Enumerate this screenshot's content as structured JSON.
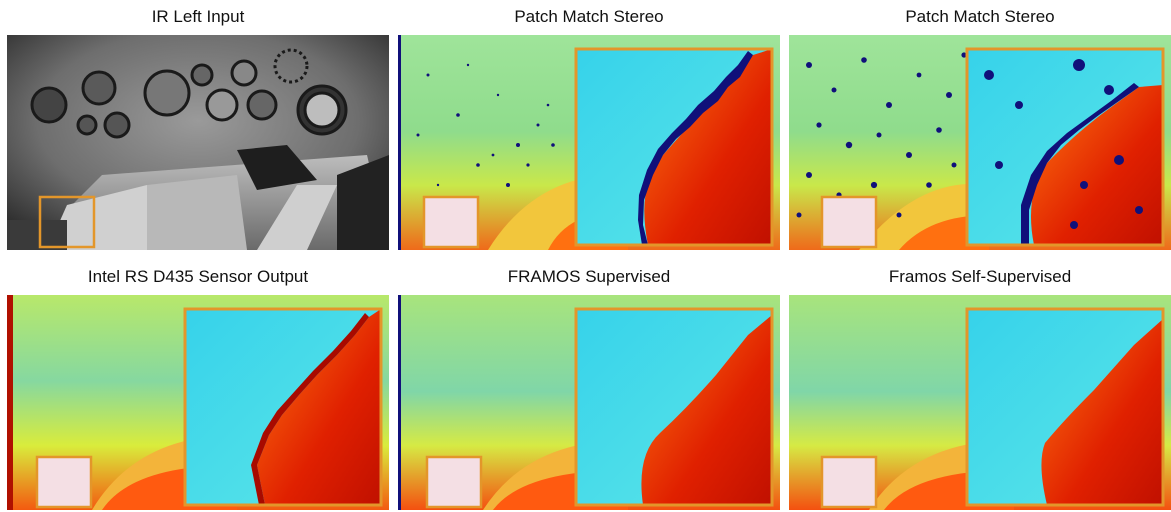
{
  "figure": {
    "panels": [
      {
        "caption": "IR Left Input",
        "kind": "ir"
      },
      {
        "caption": "Patch Match Stereo",
        "kind": "pms1"
      },
      {
        "caption": "Patch Match Stereo",
        "kind": "pms2"
      },
      {
        "caption": "Intel RS D435 Sensor Output",
        "kind": "d435"
      },
      {
        "caption": "FRAMOS Supervised",
        "kind": "sup"
      },
      {
        "caption": "Framos Self-Supervised",
        "kind": "self"
      }
    ],
    "colors": {
      "inset_border": "#e3962a",
      "invalid": "#10107a",
      "far": "#3de0ea",
      "mid": "#c4e83c",
      "near": "#cc1400"
    }
  }
}
